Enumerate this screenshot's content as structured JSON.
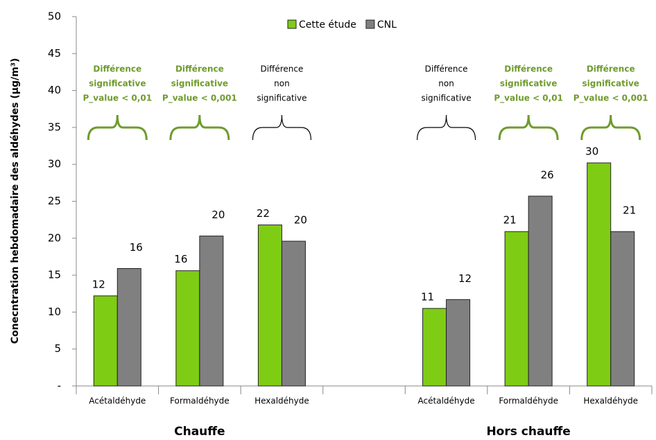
{
  "chart_data": {
    "type": "bar",
    "y_label": "Conecntration hebdomadaire des aldéhydes (µg/m³)",
    "categories": [
      "Acétaldéhyde",
      "Formaldéhyde",
      "Hexaldéhyde",
      null,
      "Acétaldéhyde",
      "Formaldéhyde",
      "Hexaldéhyde"
    ],
    "groups": [
      {
        "label": "Chauffe",
        "span": [
          0,
          2
        ]
      },
      {
        "label": "Hors chauffe",
        "span": [
          4,
          6
        ]
      }
    ],
    "series": [
      {
        "name": "Cette étude",
        "color": "#7fcc14",
        "values": [
          12.2,
          15.6,
          21.8,
          null,
          10.5,
          20.9,
          30.2
        ],
        "value_labels": [
          "12",
          "16",
          "22",
          null,
          "11",
          "21",
          "30"
        ]
      },
      {
        "name": "CNL",
        "color": "#808080",
        "values": [
          15.9,
          20.3,
          19.6,
          null,
          11.7,
          25.7,
          20.9
        ],
        "value_labels": [
          "16",
          "20",
          "20",
          null,
          "12",
          "26",
          "21"
        ]
      }
    ],
    "annotations": [
      {
        "lines": [
          "Différence",
          "significative",
          "P_value < 0,01"
        ],
        "color": "#6f9b2e",
        "bold": true
      },
      {
        "lines": [
          "Différence",
          "significative",
          "P_value < 0,001"
        ],
        "color": "#6f9b2e",
        "bold": true
      },
      {
        "lines": [
          "Différence",
          "non",
          "significative"
        ],
        "color": "#000000",
        "bold": false
      },
      null,
      {
        "lines": [
          "Différence",
          "non",
          "significative"
        ],
        "color": "#000000",
        "bold": false
      },
      {
        "lines": [
          "Différence",
          "significative",
          "P_value < 0,01"
        ],
        "color": "#6f9b2e",
        "bold": true
      },
      {
        "lines": [
          "Différence",
          "significative",
          "P_value < 0,001"
        ],
        "color": "#6f9b2e",
        "bold": true
      }
    ],
    "ylim": [
      0,
      50
    ],
    "yticks": [
      {
        "value": 0,
        "label": "-"
      },
      5,
      10,
      15,
      20,
      25,
      30,
      35,
      40,
      45,
      50
    ],
    "legend": "top"
  }
}
